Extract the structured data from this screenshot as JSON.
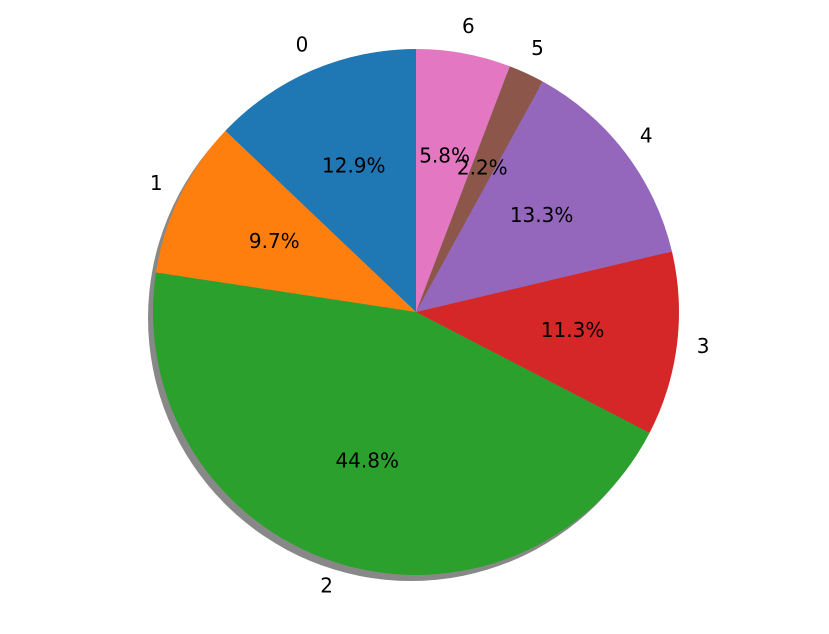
{
  "chart_data": {
    "type": "pie",
    "categories": [
      "0",
      "1",
      "2",
      "3",
      "4",
      "5",
      "6"
    ],
    "values": [
      12.9,
      9.7,
      44.8,
      11.3,
      13.3,
      2.2,
      5.8
    ],
    "value_labels": [
      "12.9%",
      "9.7%",
      "44.8%",
      "11.3%",
      "13.3%",
      "2.2%",
      "5.8%"
    ],
    "colors": [
      "#1f77b4",
      "#ff7f0e",
      "#2ca02c",
      "#d62728",
      "#9467bd",
      "#8c564b",
      "#e377c2"
    ],
    "shadow": true
  }
}
